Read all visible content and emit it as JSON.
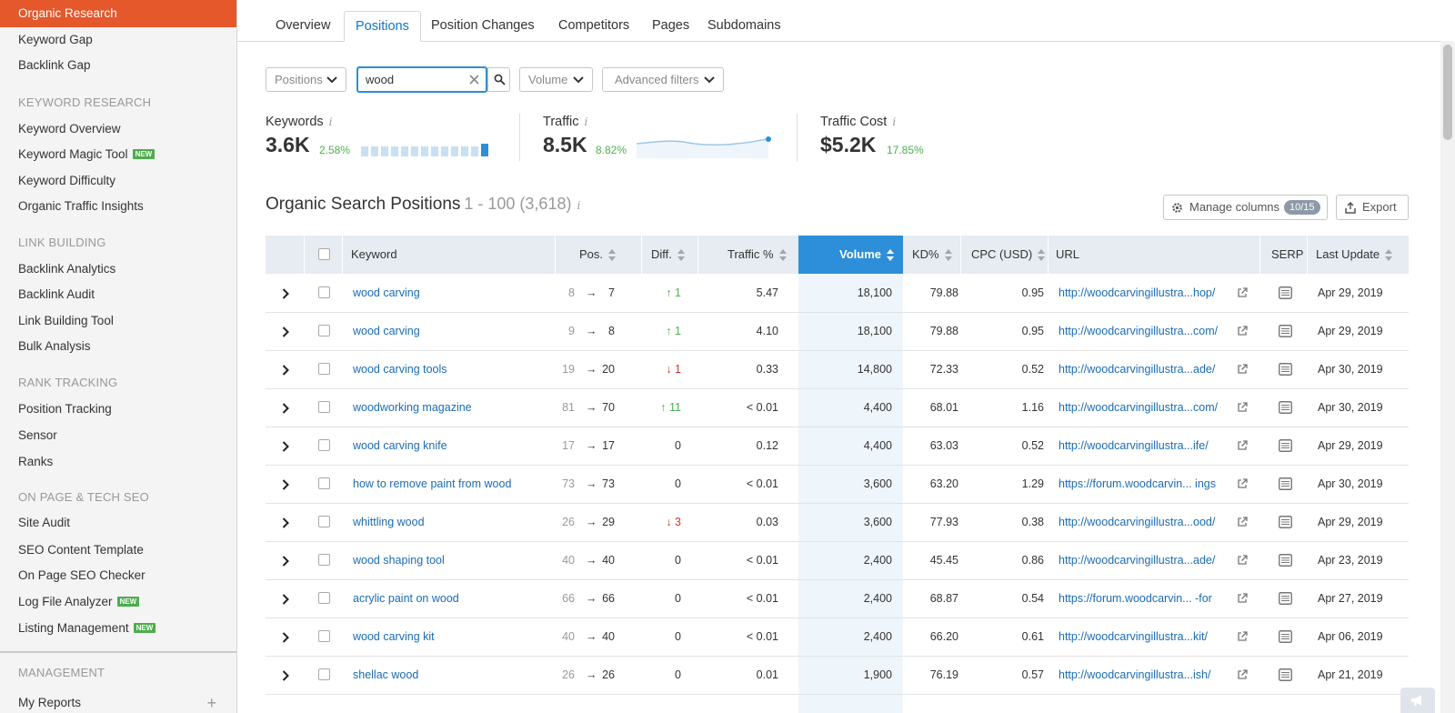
{
  "sidebar": {
    "active_item": "Organic Research",
    "top_items": [
      "Keyword Gap",
      "Backlink Gap"
    ],
    "sections": [
      {
        "title": "KEYWORD RESEARCH",
        "items": [
          {
            "label": "Keyword Overview",
            "new": ""
          },
          {
            "label": "Keyword Magic Tool",
            "new": "NEW"
          },
          {
            "label": "Keyword Difficulty",
            "new": ""
          },
          {
            "label": "Organic Traffic Insights",
            "new": ""
          }
        ]
      },
      {
        "title": "LINK BUILDING",
        "items": [
          {
            "label": "Backlink Analytics",
            "new": ""
          },
          {
            "label": "Backlink Audit",
            "new": ""
          },
          {
            "label": "Link Building Tool",
            "new": ""
          },
          {
            "label": "Bulk Analysis",
            "new": ""
          }
        ]
      },
      {
        "title": "RANK TRACKING",
        "items": [
          {
            "label": "Position Tracking",
            "new": ""
          },
          {
            "label": "Sensor",
            "new": ""
          },
          {
            "label": "Ranks",
            "new": ""
          }
        ]
      },
      {
        "title": "ON PAGE & TECH SEO",
        "items": [
          {
            "label": "Site Audit",
            "new": ""
          },
          {
            "label": "SEO Content Template",
            "new": ""
          },
          {
            "label": "On Page SEO Checker",
            "new": ""
          },
          {
            "label": "Log File Analyzer",
            "new": "NEW"
          },
          {
            "label": "Listing Management",
            "new": "NEW"
          }
        ]
      }
    ],
    "management_title": "MANAGEMENT",
    "my_reports": "My Reports",
    "plus": "+"
  },
  "tabs": [
    "Overview",
    "Positions",
    "Position Changes",
    "Competitors",
    "Pages",
    "Subdomains"
  ],
  "active_tab": "Positions",
  "filters": {
    "positions": "Positions",
    "search_value": "wood",
    "volume": "Volume",
    "advanced": "Advanced filters"
  },
  "metrics": {
    "keywords": {
      "label": "Keywords",
      "value": "3.6K",
      "delta": "2.58%",
      "bar_levels": [
        0.75,
        0.75,
        0.75,
        0.75,
        0.75,
        0.75,
        0.75,
        0.75,
        0.75,
        0.75,
        0.75,
        0.75,
        1.0
      ]
    },
    "traffic": {
      "label": "Traffic",
      "value": "8.5K",
      "delta": "8.82%"
    },
    "traffic_cost": {
      "label": "Traffic Cost",
      "value": "$5.2K",
      "delta": "17.85%"
    },
    "info_glyph": "i"
  },
  "section": {
    "title": "Organic Search Positions",
    "range": "1 - 100 (3,618)"
  },
  "buttons": {
    "manage_columns": "Manage columns",
    "columns_count": "10/15",
    "export": "Export"
  },
  "table": {
    "headers": {
      "keyword": "Keyword",
      "pos": "Pos.",
      "diff": "Diff.",
      "traffic": "Traffic %",
      "volume": "Volume",
      "kd": "KD%",
      "cpc": "CPC (USD)",
      "url": "URL",
      "serp": "SERP",
      "last_update": "Last Update"
    },
    "arrow": "→",
    "rows": [
      {
        "keyword": "wood carving",
        "pos_old": "8",
        "pos_new": "7",
        "diff": "↑ 1",
        "diff_dir": "up",
        "traffic": "5.47",
        "volume": "18,100",
        "kd": "79.88",
        "cpc": "0.95",
        "url": "http://woodcarvingillustra...hop/",
        "last_update": "Apr 29, 2019"
      },
      {
        "keyword": "wood carving",
        "pos_old": "9",
        "pos_new": "8",
        "diff": "↑ 1",
        "diff_dir": "up",
        "traffic": "4.10",
        "volume": "18,100",
        "kd": "79.88",
        "cpc": "0.95",
        "url": "http://woodcarvingillustra...com/",
        "last_update": "Apr 29, 2019"
      },
      {
        "keyword": "wood carving tools",
        "pos_old": "19",
        "pos_new": "20",
        "diff": "↓ 1",
        "diff_dir": "down",
        "traffic": "0.33",
        "volume": "14,800",
        "kd": "72.33",
        "cpc": "0.52",
        "url": "http://woodcarvingillustra...ade/",
        "last_update": "Apr 30, 2019"
      },
      {
        "keyword": "woodworking magazine",
        "pos_old": "81",
        "pos_new": "70",
        "diff": "↑ 11",
        "diff_dir": "up",
        "traffic": "< 0.01",
        "volume": "4,400",
        "kd": "68.01",
        "cpc": "1.16",
        "url": "http://woodcarvingillustra...com/",
        "last_update": "Apr 30, 2019"
      },
      {
        "keyword": "wood carving knife",
        "pos_old": "17",
        "pos_new": "17",
        "diff": "0",
        "diff_dir": "none",
        "traffic": "0.12",
        "volume": "4,400",
        "kd": "63.03",
        "cpc": "0.52",
        "url": "http://woodcarvingillustra...ife/",
        "last_update": "Apr 29, 2019"
      },
      {
        "keyword": "how to remove paint from wood",
        "pos_old": "73",
        "pos_new": "73",
        "diff": "0",
        "diff_dir": "none",
        "traffic": "< 0.01",
        "volume": "3,600",
        "kd": "63.20",
        "cpc": "1.29",
        "url": "https://forum.woodcarvin... ings",
        "last_update": "Apr 30, 2019"
      },
      {
        "keyword": "whittling wood",
        "pos_old": "26",
        "pos_new": "29",
        "diff": "↓ 3",
        "diff_dir": "down",
        "traffic": "0.03",
        "volume": "3,600",
        "kd": "77.93",
        "cpc": "0.38",
        "url": "http://woodcarvingillustra...ood/",
        "last_update": "Apr 29, 2019"
      },
      {
        "keyword": "wood shaping tool",
        "pos_old": "40",
        "pos_new": "40",
        "diff": "0",
        "diff_dir": "none",
        "traffic": "< 0.01",
        "volume": "2,400",
        "kd": "45.45",
        "cpc": "0.86",
        "url": "http://woodcarvingillustra...ade/",
        "last_update": "Apr 23, 2019"
      },
      {
        "keyword": "acrylic paint on wood",
        "pos_old": "66",
        "pos_new": "66",
        "diff": "0",
        "diff_dir": "none",
        "traffic": "< 0.01",
        "volume": "2,400",
        "kd": "68.87",
        "cpc": "0.54",
        "url": "https://forum.woodcarvin... -for",
        "last_update": "Apr 27, 2019"
      },
      {
        "keyword": "wood carving kit",
        "pos_old": "40",
        "pos_new": "40",
        "diff": "0",
        "diff_dir": "none",
        "traffic": "< 0.01",
        "volume": "2,400",
        "kd": "66.20",
        "cpc": "0.61",
        "url": "http://woodcarvingillustra...kit/",
        "last_update": "Apr 06, 2019"
      },
      {
        "keyword": "shellac wood",
        "pos_old": "26",
        "pos_new": "26",
        "diff": "0",
        "diff_dir": "none",
        "traffic": "0.01",
        "volume": "1,900",
        "kd": "76.19",
        "cpc": "0.57",
        "url": "http://woodcarvingillustra...ish/",
        "last_update": "Apr 21, 2019"
      }
    ]
  },
  "colors": {
    "accent": "#e4582b",
    "link": "#1a6cb5",
    "sorted_header": "#2d8fd9",
    "up": "#4caf50",
    "down": "#d9352e"
  }
}
